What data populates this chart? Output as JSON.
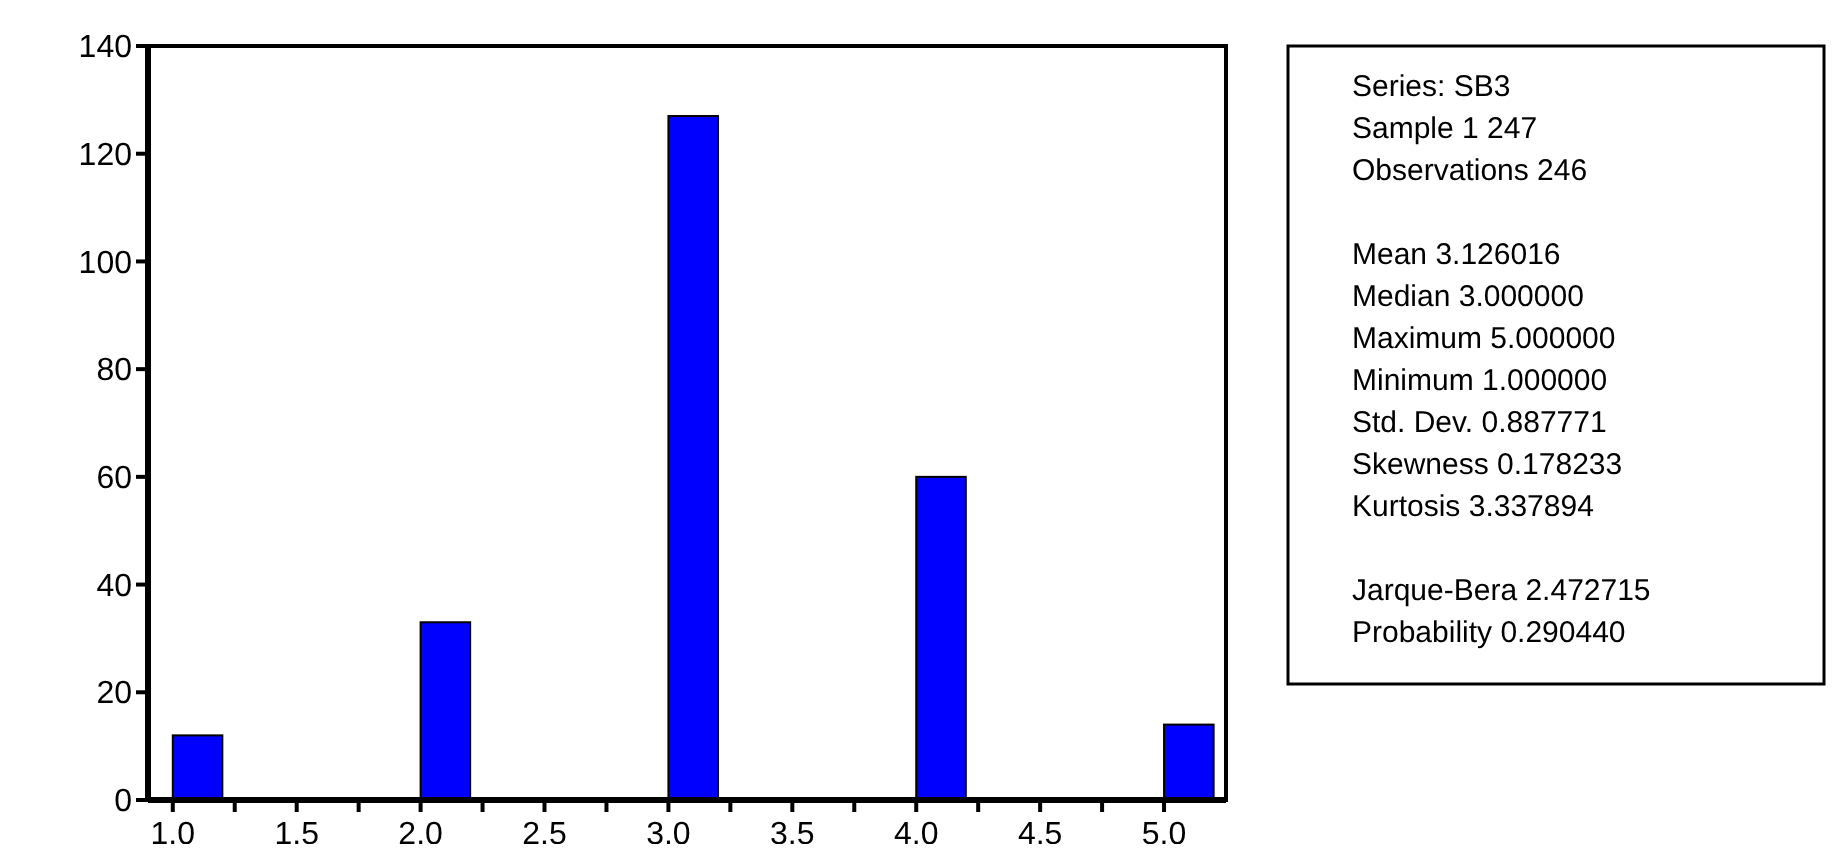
{
  "chart_data": {
    "type": "histogram",
    "bins": [
      1.0,
      1.2,
      1.4,
      1.6,
      1.8,
      2.0,
      2.2,
      2.4,
      2.6,
      2.8,
      3.0,
      3.2,
      3.4,
      3.6,
      3.8,
      4.0,
      4.2,
      4.4,
      4.6,
      4.8,
      5.0,
      5.2
    ],
    "values": [
      12,
      0,
      0,
      0,
      0,
      33,
      0,
      0,
      0,
      0,
      127,
      0,
      0,
      0,
      0,
      60,
      0,
      0,
      0,
      0,
      14
    ],
    "color": "#0000ff",
    "xlim": [
      0.9,
      5.25
    ],
    "xticks": [
      {
        "value": 1,
        "label": "1.0"
      },
      {
        "value": 1.25,
        "label": null
      },
      {
        "value": 1.5,
        "label": "1.5"
      },
      {
        "value": 1.75,
        "label": null
      },
      {
        "value": 2,
        "label": "2.0"
      },
      {
        "value": 2.25,
        "label": null
      },
      {
        "value": 2.5,
        "label": "2.5"
      },
      {
        "value": 2.75,
        "label": null
      },
      {
        "value": 3,
        "label": "3.0"
      },
      {
        "value": 3.25,
        "label": null
      },
      {
        "value": 3.5,
        "label": "3.5"
      },
      {
        "value": 3.75,
        "label": null
      },
      {
        "value": 4,
        "label": "4.0"
      },
      {
        "value": 4.25,
        "label": null
      },
      {
        "value": 4.5,
        "label": "4.5"
      },
      {
        "value": 4.75,
        "label": null
      },
      {
        "value": 5,
        "label": "5.0"
      }
    ],
    "ylim": [
      0,
      140
    ],
    "yticks": [
      0,
      20,
      40,
      60,
      80,
      100,
      120,
      140
    ],
    "annotations": [
      "Series: SB3",
      "Sample 1 247",
      "Observations 246",
      "Mean 3.126016",
      "Median 3.000000",
      "Maximum 5.000000",
      "Minimum 1.000000",
      "Std. Dev. 0.887771",
      "Skewness 0.178233",
      "Kurtosis 3.337894",
      "Jarque-Bera 2.472715",
      "Probability 0.290440"
    ]
  }
}
